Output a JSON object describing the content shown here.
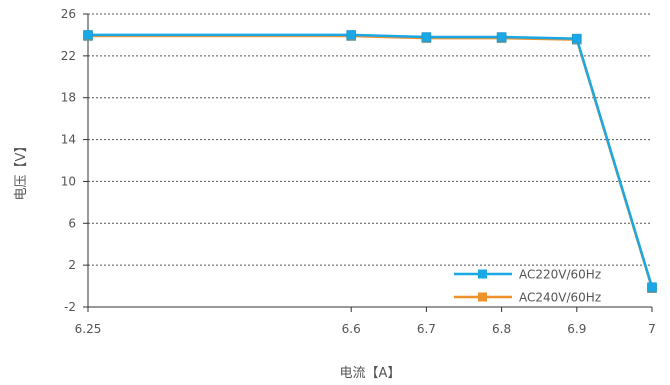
{
  "chart_data": {
    "type": "line",
    "x": [
      6.25,
      6.6,
      6.7,
      6.8,
      6.9,
      7
    ],
    "x_tick_labels": [
      "6.25",
      "6.6",
      "6.7",
      "6.8",
      "6.9",
      "7"
    ],
    "y_ticks": [
      -2,
      2,
      6,
      10,
      14,
      18,
      22,
      26
    ],
    "y_tick_labels": [
      "-2",
      "2",
      "6",
      "10",
      "14",
      "18",
      "22",
      "26"
    ],
    "ylim": [
      -2,
      26
    ],
    "xlabel": "电流【A】",
    "ylabel": "电压【V】",
    "grid": "horizontal-dotted",
    "legend_position": "bottom-right",
    "series": [
      {
        "name": "AC220V/60Hz",
        "color": "#1aa7e6",
        "values": [
          24.0,
          24.0,
          23.8,
          23.8,
          23.65,
          -0.1
        ]
      },
      {
        "name": "AC240V/60Hz",
        "color": "#f0922b",
        "values": [
          23.9,
          23.9,
          23.7,
          23.7,
          23.55,
          -0.2
        ]
      }
    ]
  }
}
